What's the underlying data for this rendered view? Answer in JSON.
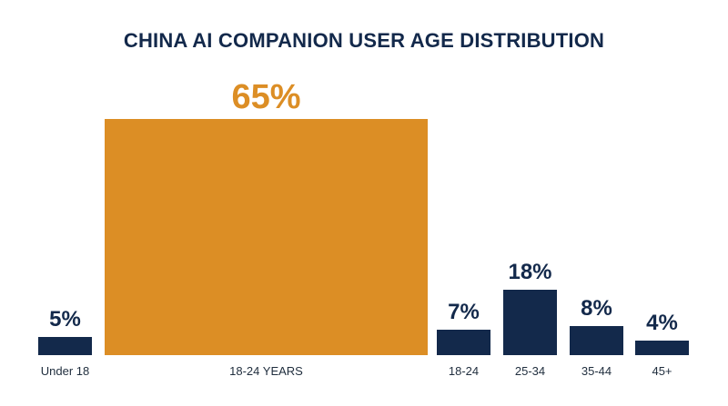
{
  "chart_data": {
    "type": "bar",
    "title": "CHINA AI COMPANION USER AGE DISTRIBUTION",
    "categories": [
      "Under 18",
      "18-24 YEARS",
      "18-24",
      "25-34",
      "35-44",
      "45+"
    ],
    "values": [
      5,
      65,
      7,
      18,
      8,
      4
    ],
    "value_labels": [
      "5%",
      "65%",
      "7%",
      "18%",
      "8%",
      "4%"
    ],
    "highlight_index": 1,
    "colors": {
      "default": "#13294b",
      "highlight": "#dc8e25",
      "title": "#13294b",
      "tick": "#1f2d3d"
    },
    "xlabel": "",
    "ylabel": "",
    "ylim": [
      0,
      65
    ],
    "grid": false,
    "legend": "none"
  }
}
